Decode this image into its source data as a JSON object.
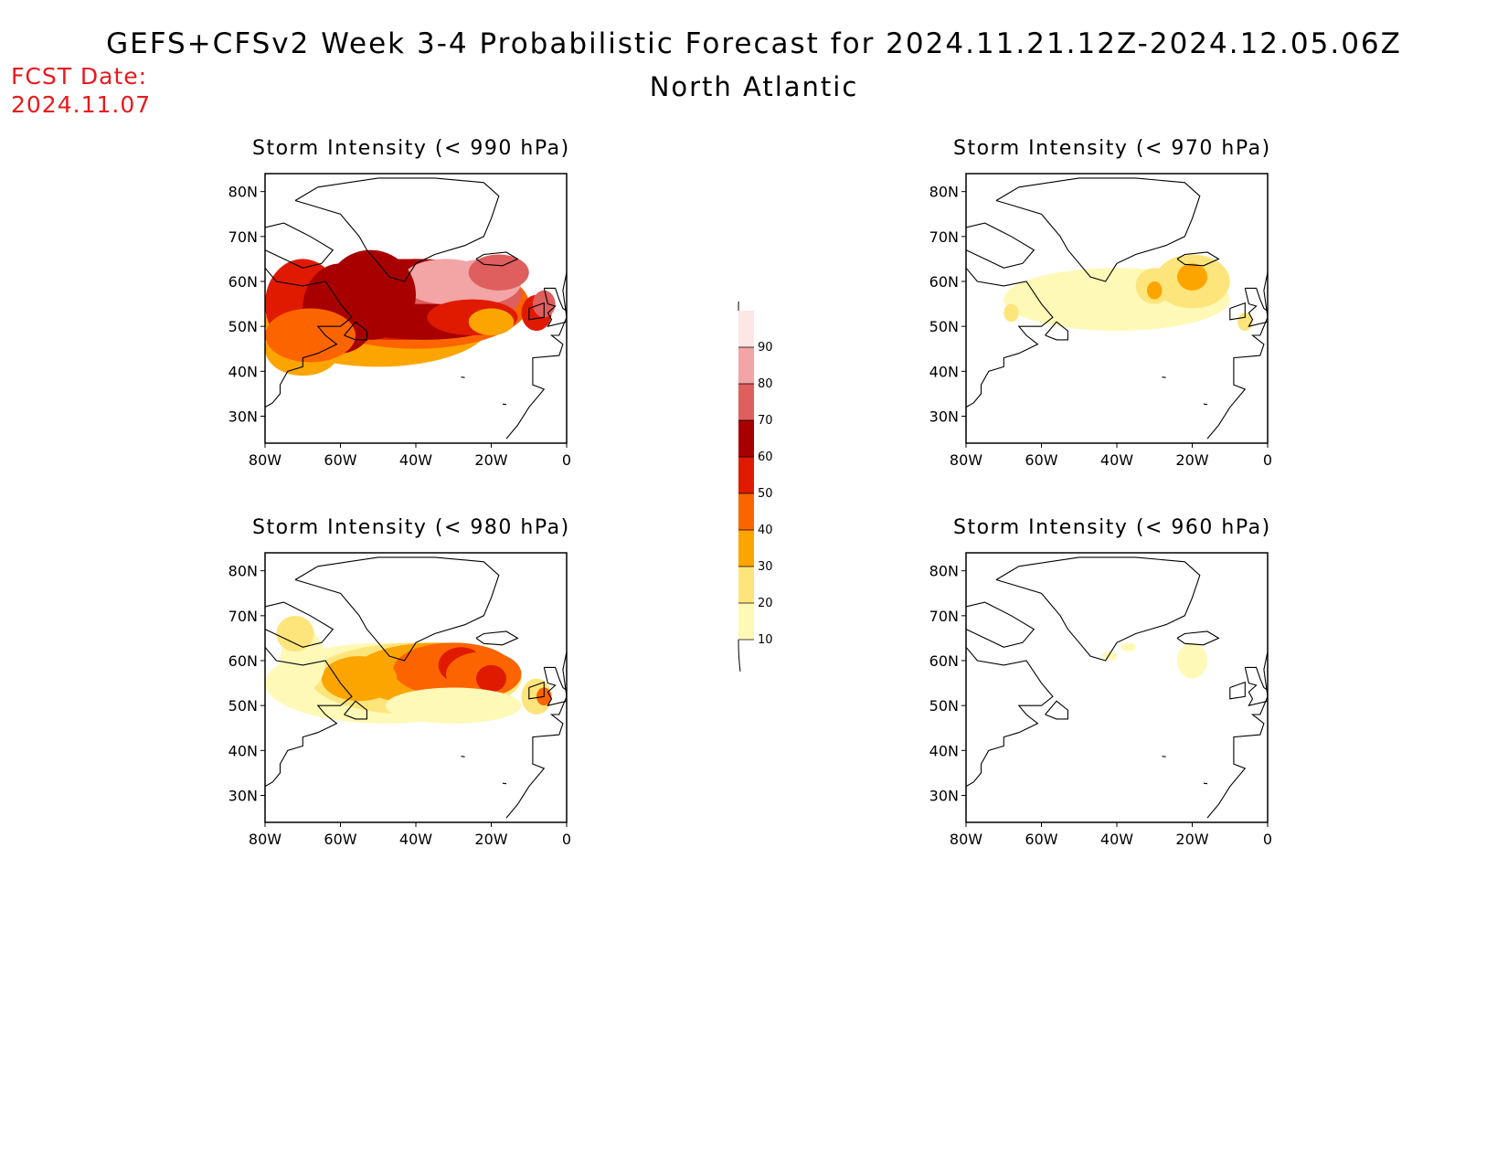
{
  "header": {
    "title": "GEFS+CFSv2 Week 3-4 Probabilistic Forecast for 2024.11.21.12Z-2024.12.05.06Z",
    "region": "North Atlantic",
    "fcst_label": "FCST Date:",
    "fcst_date": "2024.11.07"
  },
  "axes": {
    "lat_labels": [
      "80N",
      "70N",
      "60N",
      "50N",
      "40N",
      "30N"
    ],
    "lon_labels": [
      "80W",
      "60W",
      "40W",
      "20W",
      "0"
    ]
  },
  "panels": [
    {
      "id": "p990",
      "title": "Storm Intensity (< 990 hPa)",
      "level": "high"
    },
    {
      "id": "p970",
      "title": "Storm Intensity (< 970 hPa)",
      "level": "low"
    },
    {
      "id": "p980",
      "title": "Storm Intensity (< 980 hPa)",
      "level": "mid"
    },
    {
      "id": "p960",
      "title": "Storm Intensity (< 960 hPa)",
      "level": "minimal"
    }
  ],
  "colorbar": {
    "levels": [
      "10",
      "20",
      "30",
      "40",
      "50",
      "60",
      "70",
      "80",
      "90"
    ],
    "colors": [
      "#fff9b8",
      "#fde57c",
      "#fca500",
      "#fc6400",
      "#e01a00",
      "#a80000",
      "#df5e5e",
      "#f3a4a4",
      "#fde6e6"
    ]
  }
}
